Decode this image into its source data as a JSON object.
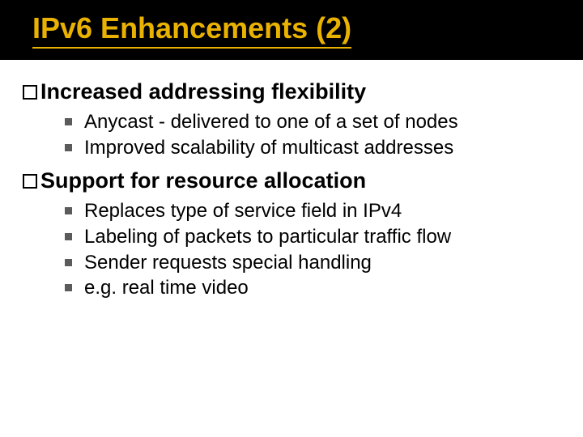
{
  "title_bar": {
    "background_color": "#000000",
    "underline_color": "#eab200"
  },
  "slide": {
    "title": "IPv6 Enhancements (2)",
    "title_color": "#eab200",
    "title_fontsize": 36,
    "heading_fontsize": 27,
    "body_fontsize": 24,
    "bullet_color": "#5b5b5b",
    "sections": [
      {
        "heading": "Increased addressing flexibility",
        "items": [
          "Anycast - delivered to one of a set of nodes",
          "Improved scalability of multicast addresses"
        ]
      },
      {
        "heading": "Support for resource allocation",
        "items": [
          "Replaces type of service field in IPv4",
          "Labeling of packets to particular traffic flow",
          "Sender requests special handling",
          "e.g. real time video"
        ]
      }
    ]
  }
}
